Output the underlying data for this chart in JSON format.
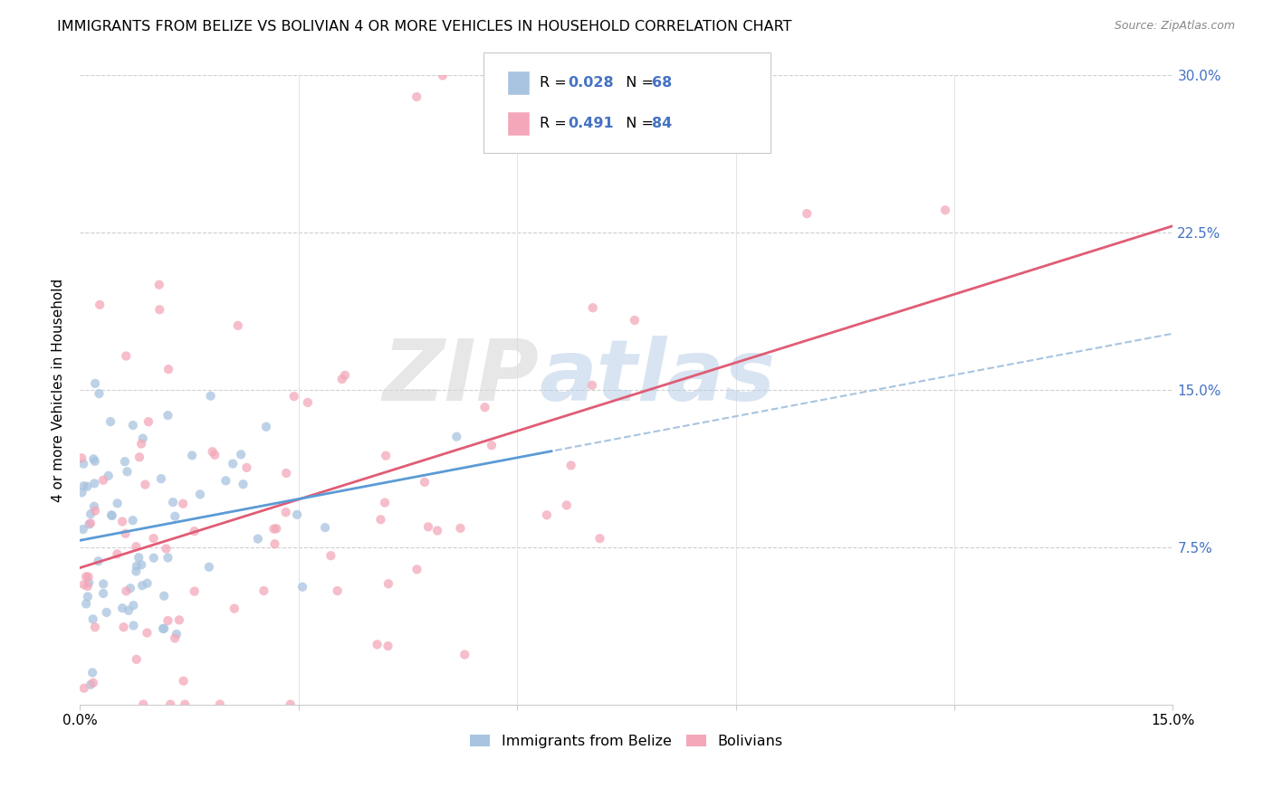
{
  "title": "IMMIGRANTS FROM BELIZE VS BOLIVIAN 4 OR MORE VEHICLES IN HOUSEHOLD CORRELATION CHART",
  "source": "Source: ZipAtlas.com",
  "ylabel": "4 or more Vehicles in Household",
  "x_min": 0.0,
  "x_max": 0.15,
  "y_min": 0.0,
  "y_max": 0.3,
  "legend_labels": [
    "Immigrants from Belize",
    "Bolivians"
  ],
  "color_belize": "#a8c4e0",
  "color_bolivia": "#f4a7b9",
  "line_color_belize_solid": "#5b9bd5",
  "line_color_belize_dash": "#a8c4e0",
  "line_color_bolivia": "#e05c75",
  "scatter_alpha": 0.75,
  "scatter_size": 55,
  "watermark_zip": "ZIP",
  "watermark_atlas": "atlas",
  "background_color": "#ffffff",
  "grid_color": "#d0d0d0",
  "right_tick_color": "#4472c4",
  "legend_text_color": "#4472c4",
  "title_fontsize": 11.5,
  "source_fontsize": 9,
  "tick_fontsize": 11,
  "ylabel_fontsize": 11,
  "legend_fontsize": 11.5
}
